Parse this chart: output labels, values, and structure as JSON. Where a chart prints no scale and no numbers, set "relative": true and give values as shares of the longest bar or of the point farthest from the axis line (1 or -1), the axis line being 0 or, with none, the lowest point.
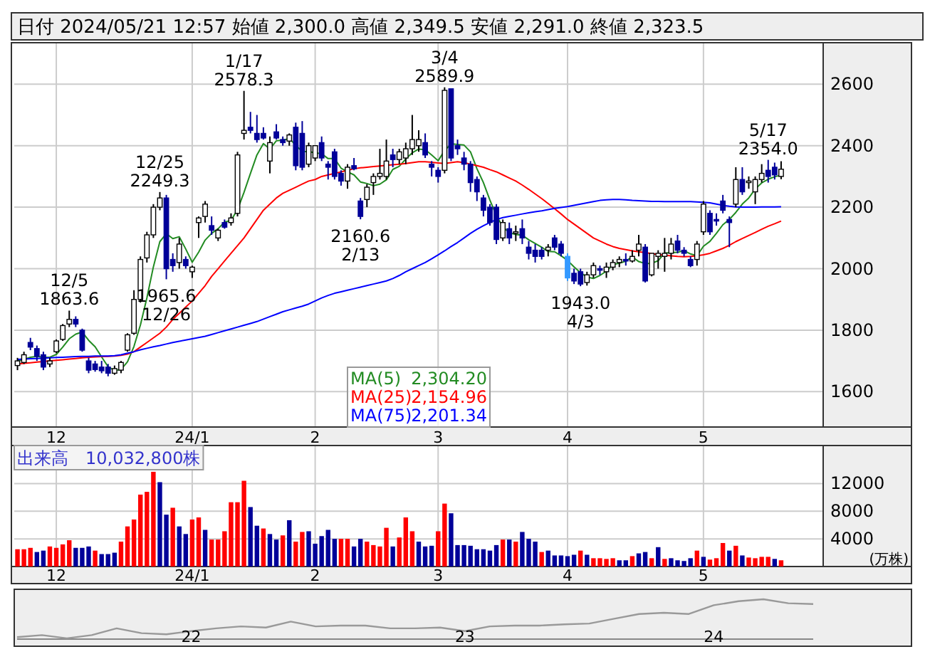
{
  "chart_data": [
    {
      "type": "candlestick",
      "title": "日付 2024/05/21 12:57 始値 2,300.0 高値 2,349.5 安値 2,291.0 終値 2,323.5",
      "categories": [
        null,
        null,
        null,
        null,
        null,
        null,
        "12",
        null,
        null,
        null,
        null,
        null,
        null,
        null,
        null,
        null,
        null,
        null,
        null,
        null,
        null,
        null,
        null,
        null,
        null,
        null,
        null,
        "24/1",
        null,
        null,
        null,
        null,
        null,
        null,
        null,
        null,
        null,
        null,
        null,
        null,
        null,
        null,
        null,
        null,
        null,
        null,
        "2",
        null,
        null,
        null,
        null,
        null,
        null,
        null,
        null,
        null,
        null,
        null,
        null,
        null,
        null,
        null,
        null,
        null,
        null,
        "3",
        null,
        null,
        null,
        null,
        null,
        null,
        null,
        null,
        null,
        null,
        null,
        null,
        null,
        null,
        null,
        null,
        null,
        null,
        null,
        "4",
        null,
        null,
        null,
        null,
        null,
        null,
        null,
        null,
        null,
        null,
        null,
        null,
        null,
        null,
        null,
        null,
        null,
        null,
        null,
        null,
        "5",
        null,
        null,
        null,
        null,
        null,
        null,
        null,
        null,
        null,
        null,
        null,
        null
      ],
      "ohlc": [
        [
          1685,
          1710,
          1670,
          1700
        ],
        [
          1695,
          1730,
          1690,
          1720
        ],
        [
          1760,
          1775,
          1735,
          1745
        ],
        [
          1740,
          1750,
          1700,
          1715
        ],
        [
          1720,
          1730,
          1670,
          1680
        ],
        [
          1690,
          1710,
          1680,
          1700
        ],
        [
          1730,
          1770,
          1725,
          1765
        ],
        [
          1770,
          1820,
          1765,
          1815
        ],
        [
          1820,
          1863.6,
          1810,
          1835
        ],
        [
          1835,
          1845,
          1810,
          1820
        ],
        [
          1800,
          1805,
          1730,
          1735
        ],
        [
          1700,
          1710,
          1660,
          1670
        ],
        [
          1690,
          1700,
          1665,
          1672
        ],
        [
          1680,
          1700,
          1660,
          1668
        ],
        [
          1680,
          1690,
          1650,
          1660
        ],
        [
          1660,
          1685,
          1655,
          1675
        ],
        [
          1670,
          1700,
          1660,
          1695
        ],
        [
          1735,
          1790,
          1730,
          1785
        ],
        [
          1790,
          1930,
          1785,
          1900
        ],
        [
          1900,
          2040,
          1890,
          2030
        ],
        [
          2035,
          2120,
          2020,
          2110
        ],
        [
          2110,
          2210,
          2100,
          2200
        ],
        [
          2200,
          2249.3,
          2190,
          2230
        ],
        [
          2230,
          2240,
          1965.6,
          2000
        ],
        [
          2030,
          2050,
          1990,
          2010
        ],
        [
          2020,
          2100,
          2000,
          2080
        ],
        [
          2030,
          2040,
          2000,
          2010
        ],
        [
          1990,
          2010,
          1970,
          2005
        ],
        [
          2150,
          2170,
          2100,
          2165
        ],
        [
          2170,
          2220,
          2150,
          2210
        ],
        [
          2140,
          2170,
          2110,
          2125
        ],
        [
          2100,
          2130,
          2090,
          2125
        ],
        [
          2150,
          2160,
          2130,
          2135
        ],
        [
          2150,
          2180,
          2140,
          2165
        ],
        [
          2180,
          2380,
          2170,
          2370
        ],
        [
          2440,
          2578.3,
          2420,
          2450
        ],
        [
          2460,
          2510,
          2440,
          2450
        ],
        [
          2440,
          2500,
          2410,
          2420
        ],
        [
          2440,
          2460,
          2420,
          2425
        ],
        [
          2350,
          2430,
          2310,
          2410
        ],
        [
          2445,
          2470,
          2420,
          2425
        ],
        [
          2420,
          2430,
          2400,
          2410
        ],
        [
          2415,
          2440,
          2400,
          2435
        ],
        [
          2460,
          2475,
          2320,
          2335
        ],
        [
          2440,
          2480,
          2320,
          2330
        ],
        [
          2340,
          2410,
          2330,
          2400
        ],
        [
          2360,
          2400,
          2350,
          2400
        ],
        [
          2410,
          2430,
          2350,
          2360
        ],
        [
          2340,
          2350,
          2290,
          2330
        ],
        [
          2380,
          2390,
          2290,
          2300
        ],
        [
          2310,
          2320,
          2270,
          2285
        ],
        [
          2285,
          2340,
          2260,
          2330
        ],
        [
          2335,
          2360,
          2320,
          2325
        ],
        [
          2220,
          2230,
          2160.6,
          2170
        ],
        [
          2225,
          2275,
          2200,
          2265
        ],
        [
          2280,
          2310,
          2240,
          2300
        ],
        [
          2300,
          2390,
          2290,
          2310
        ],
        [
          2300,
          2420,
          2290,
          2350
        ],
        [
          2370,
          2390,
          2330,
          2355
        ],
        [
          2355,
          2390,
          2340,
          2380
        ],
        [
          2360,
          2410,
          2340,
          2390
        ],
        [
          2390,
          2500,
          2370,
          2420
        ],
        [
          2400,
          2450,
          2380,
          2420
        ],
        [
          2410,
          2440,
          2360,
          2370
        ],
        [
          2340,
          2350,
          2300,
          2330
        ],
        [
          2320,
          2330,
          2280,
          2300
        ],
        [
          2320,
          2589.9,
          2310,
          2580
        ],
        [
          2585,
          2585,
          2350,
          2360
        ],
        [
          2400,
          2420,
          2370,
          2390
        ],
        [
          2360,
          2380,
          2320,
          2340
        ],
        [
          2340,
          2350,
          2250,
          2280
        ],
        [
          2290,
          2300,
          2220,
          2250
        ],
        [
          2230,
          2240,
          2170,
          2190
        ],
        [
          2200,
          2210,
          2140,
          2150
        ],
        [
          2200,
          2210,
          2080,
          2095
        ],
        [
          2100,
          2160,
          2090,
          2150
        ],
        [
          2130,
          2150,
          2080,
          2100
        ],
        [
          2115,
          2140,
          2090,
          2120
        ],
        [
          2130,
          2160,
          2080,
          2100
        ],
        [
          2070,
          2090,
          2030,
          2050
        ],
        [
          2060,
          2080,
          2020,
          2040
        ],
        [
          2060,
          2070,
          2030,
          2040
        ],
        [
          2060,
          2080,
          2040,
          2070
        ],
        [
          2100,
          2110,
          2060,
          2070
        ],
        [
          2080,
          2090,
          2040,
          2050
        ],
        [
          2040,
          2050,
          1960,
          1970
        ],
        [
          1985,
          2000,
          1950,
          1960
        ],
        [
          1990,
          2000,
          1943.0,
          1950
        ],
        [
          1955,
          1990,
          1945,
          1980
        ],
        [
          1980,
          2020,
          1970,
          2010
        ],
        [
          2000,
          2010,
          1980,
          1995
        ],
        [
          1990,
          2020,
          1970,
          2005
        ],
        [
          2005,
          2030,
          1995,
          2020
        ],
        [
          2020,
          2040,
          2005,
          2030
        ],
        [
          2030,
          2050,
          2010,
          2025
        ],
        [
          2025,
          2060,
          2020,
          2040
        ],
        [
          2060,
          2110,
          2040,
          2080
        ],
        [
          2070,
          2080,
          1955,
          1960
        ],
        [
          1980,
          2050,
          1975,
          2050
        ],
        [
          2040,
          2060,
          2000,
          2050
        ],
        [
          2040,
          2100,
          1990,
          2050
        ],
        [
          2050,
          2100,
          2030,
          2080
        ],
        [
          2090,
          2110,
          2050,
          2060
        ],
        [
          2060,
          2070,
          2040,
          2050
        ],
        [
          2030,
          2040,
          2005,
          2010
        ],
        [
          2030,
          2090,
          2010,
          2080
        ],
        [
          2120,
          2220,
          2110,
          2210
        ],
        [
          2180,
          2190,
          2110,
          2120
        ],
        [
          2160,
          2180,
          2140,
          2155
        ],
        [
          2220,
          2240,
          2180,
          2190
        ],
        [
          2160,
          2170,
          2070,
          2150
        ],
        [
          2210,
          2330,
          2200,
          2290
        ],
        [
          2290,
          2330,
          2240,
          2250
        ],
        [
          2280,
          2300,
          2260,
          2285
        ],
        [
          2250,
          2300,
          2210,
          2290
        ],
        [
          2290,
          2340,
          2280,
          2310
        ],
        [
          2320,
          2354.0,
          2280,
          2300
        ],
        [
          2330,
          2345,
          2290,
          2305
        ],
        [
          2300,
          2349.5,
          2291.0,
          2323.5
        ]
      ],
      "colors": [
        "#ffffff",
        "#ffffff",
        "#000099",
        "#000099",
        "#000099",
        "#ffffff",
        "#ffffff",
        "#ffffff",
        "#ffffff",
        "#000099",
        "#000099",
        "#000099",
        "#000099",
        "#000099",
        "#000099",
        "#ffffff",
        "#ffffff",
        "#ffffff",
        "#ffffff",
        "#ffffff",
        "#ffffff",
        "#ffffff",
        "#ffffff",
        "#000099",
        "#000099",
        "#ffffff",
        "#000099",
        "#ffffff",
        "#ffffff",
        "#ffffff",
        "#000099",
        "#ffffff",
        "#000099",
        "#ffffff",
        "#ffffff",
        "#ffffff",
        "#000099",
        "#000099",
        "#000099",
        "#ffffff",
        "#000099",
        "#000099",
        "#ffffff",
        "#000099",
        "#000099",
        "#ffffff",
        "#ffffff",
        "#000099",
        "#000099",
        "#000099",
        "#000099",
        "#ffffff",
        "#000099",
        "#000099",
        "#ffffff",
        "#ffffff",
        "#ffffff",
        "#ffffff",
        "#000099",
        "#ffffff",
        "#ffffff",
        "#ffffff",
        "#ffffff",
        "#000099",
        "#000099",
        "#000099",
        "#ffffff",
        "#000099",
        "#000099",
        "#000099",
        "#000099",
        "#000099",
        "#000099",
        "#000099",
        "#000099",
        "#ffffff",
        "#000099",
        "#ffffff",
        "#000099",
        "#000099",
        "#000099",
        "#000099",
        "#ffffff",
        "#000099",
        "#000099",
        "#3399ff",
        "#000099",
        "#000099",
        "#ffffff",
        "#ffffff",
        "#000099",
        "#ffffff",
        "#ffffff",
        "#ffffff",
        "#000099",
        "#ffffff",
        "#ffffff",
        "#000099",
        "#ffffff",
        "#ffffff",
        "#ffffff",
        "#ffffff",
        "#000099",
        "#000099",
        "#000099",
        "#ffffff",
        "#ffffff",
        "#000099",
        "#000099",
        "#000099",
        "#000099",
        "#ffffff",
        "#000099",
        "#ffffff",
        "#ffffff",
        "#ffffff",
        "#000099",
        "#000099",
        "#ffffff"
      ],
      "series": [
        {
          "name": "MA(5)",
          "type": "line",
          "color": "#228b22",
          "values": [
            1700,
            1705,
            1712,
            1715,
            1712,
            1712,
            1721,
            1745,
            1772,
            1787,
            1794,
            1767,
            1746,
            1713,
            1681,
            1669,
            1672,
            1697,
            1747,
            1817,
            1905,
            2006,
            2088,
            2114,
            2098,
            2104,
            2064,
            2021,
            2054,
            2093,
            2115,
            2130,
            2152,
            2157,
            2192,
            2248,
            2310,
            2370,
            2407,
            2389,
            2416,
            2418,
            2423,
            2402,
            2381,
            2381,
            2377,
            2374,
            2358,
            2358,
            2327,
            2315,
            2305,
            2282,
            2277,
            2270,
            2275,
            2289,
            2323,
            2333,
            2357,
            2377,
            2389,
            2387,
            2370,
            2351,
            2384,
            2406,
            2404,
            2402,
            2380,
            2325,
            2280,
            2223,
            2173,
            2136,
            2117,
            2111,
            2109,
            2094,
            2082,
            2070,
            2056,
            2055,
            2042,
            2027,
            2006,
            1987,
            1973,
            1968,
            1978,
            1992,
            2013,
            2018,
            2024,
            2039,
            2023,
            2017,
            2017,
            2026,
            2051,
            2052,
            2053,
            2059,
            2048,
            2042,
            2073,
            2089,
            2115,
            2143,
            2160,
            2183,
            2210,
            2230,
            2259,
            2279,
            2291,
            2299,
            2304.2
          ]
        },
        {
          "name": "MA(25)",
          "type": "line",
          "color": "#ff0000",
          "values": [
            1690,
            1692,
            1694,
            1696,
            1698,
            1700,
            1702,
            1704,
            1706,
            1708,
            1710,
            1712,
            1713,
            1714,
            1715,
            1716,
            1718,
            1722,
            1730,
            1745,
            1760,
            1775,
            1790,
            1810,
            1835,
            1855,
            1875,
            1895,
            1920,
            1945,
            1975,
            2000,
            2025,
            2050,
            2075,
            2100,
            2130,
            2160,
            2190,
            2210,
            2230,
            2245,
            2255,
            2265,
            2275,
            2285,
            2290,
            2300,
            2305,
            2310,
            2315,
            2320,
            2325,
            2328,
            2330,
            2332,
            2334,
            2336,
            2338,
            2340,
            2342,
            2345,
            2348,
            2348,
            2346,
            2344,
            2342,
            2345,
            2348,
            2345,
            2340,
            2335,
            2330,
            2322,
            2315,
            2305,
            2295,
            2285,
            2272,
            2258,
            2243,
            2228,
            2212,
            2195,
            2178,
            2160,
            2145,
            2130,
            2115,
            2100,
            2090,
            2080,
            2072,
            2066,
            2062,
            2058,
            2055,
            2052,
            2049,
            2046,
            2044,
            2042,
            2040,
            2039,
            2040,
            2042,
            2045,
            2050,
            2058,
            2066,
            2076,
            2088,
            2098,
            2108,
            2118,
            2128,
            2138,
            2146,
            2154.96
          ]
        },
        {
          "name": "MA(75)",
          "type": "line",
          "color": "#0000ff",
          "values": [
            1705,
            1706,
            1707,
            1708,
            1709,
            1710,
            1711,
            1712,
            1713,
            1714,
            1715,
            1715,
            1716,
            1716,
            1716,
            1717,
            1720,
            1725,
            1730,
            1736,
            1741,
            1746,
            1750,
            1755,
            1760,
            1764,
            1768,
            1772,
            1776,
            1780,
            1786,
            1792,
            1798,
            1804,
            1810,
            1816,
            1822,
            1828,
            1836,
            1844,
            1852,
            1860,
            1866,
            1872,
            1878,
            1885,
            1895,
            1905,
            1913,
            1920,
            1925,
            1930,
            1935,
            1940,
            1945,
            1950,
            1955,
            1960,
            1968,
            1978,
            1990,
            2000,
            2010,
            2020,
            2032,
            2045,
            2058,
            2072,
            2085,
            2100,
            2115,
            2128,
            2140,
            2150,
            2160,
            2166,
            2170,
            2174,
            2178,
            2182,
            2185,
            2188,
            2192,
            2196,
            2199,
            2202,
            2206,
            2210,
            2214,
            2218,
            2222,
            2224,
            2225,
            2225,
            2224,
            2222,
            2221,
            2220,
            2219,
            2219,
            2218,
            2218,
            2218,
            2218,
            2218,
            2217,
            2216,
            2214,
            2210,
            2206,
            2203,
            2201,
            2200,
            2200,
            2200,
            2201,
            2201,
            2201,
            2201.34
          ]
        }
      ],
      "ylim": [
        1485,
        2735
      ],
      "yticks": [
        1600,
        1800,
        2000,
        2200,
        2400,
        2600
      ],
      "grid": true,
      "legend": "bottom",
      "annotations": [
        "2,304.20",
        "2,154.96",
        "2,201.34",
        {
          "text": "12/5\n1863.6",
          "y": 1863.6
        },
        {
          "text": "12/25\n2249.3",
          "y": 2249.3
        },
        {
          "text": "1965.6\n12/26",
          "y": 1965.6
        },
        {
          "text": "1/17\n2578.3",
          "y": 2578.3
        },
        {
          "text": "2160.6\n2/13",
          "y": 2160.6
        },
        {
          "text": "3/4\n2589.9",
          "y": 2589.9
        },
        {
          "text": "1943.0\n4/3",
          "y": 1943.0
        },
        {
          "text": "5/17\n2354.0",
          "y": 2354.0
        }
      ]
    },
    {
      "type": "bar",
      "title": "出来高　10,032,800株",
      "ylabel": "(万株)",
      "categories": [
        null,
        null,
        null,
        null,
        null,
        null,
        "12",
        null,
        null,
        null,
        null,
        null,
        null,
        null,
        null,
        null,
        null,
        null,
        null,
        null,
        null,
        null,
        null,
        null,
        null,
        null,
        null,
        "24/1",
        null,
        null,
        null,
        null,
        null,
        null,
        null,
        null,
        null,
        null,
        null,
        null,
        null,
        null,
        null,
        null,
        null,
        null,
        "2",
        null,
        null,
        null,
        null,
        null,
        null,
        null,
        null,
        null,
        null,
        null,
        null,
        null,
        null,
        null,
        null,
        null,
        null,
        "3",
        null,
        null,
        null,
        null,
        null,
        null,
        null,
        null,
        null,
        null,
        null,
        null,
        null,
        null,
        null,
        null,
        null,
        null,
        null,
        "4",
        null,
        null,
        null,
        null,
        null,
        null,
        null,
        null,
        null,
        null,
        null,
        null,
        null,
        null,
        null,
        null,
        null,
        null,
        null,
        null,
        "5",
        null,
        null,
        null,
        null,
        null,
        null,
        null,
        null,
        null,
        null,
        null,
        null
      ],
      "values": [
        2500,
        2500,
        2700,
        2100,
        2300,
        2900,
        2700,
        3200,
        3800,
        2700,
        2700,
        2900,
        2300,
        1800,
        1800,
        2000,
        3600,
        5800,
        6800,
        10400,
        10800,
        13700,
        12200,
        7500,
        8500,
        5800,
        4700,
        6800,
        7100,
        5300,
        3900,
        3900,
        5100,
        9300,
        9300,
        12400,
        8600,
        5900,
        5500,
        4700,
        3900,
        4500,
        6700,
        3600,
        5000,
        5100,
        3300,
        4400,
        5300,
        4000,
        4000,
        4000,
        2900,
        4000,
        3600,
        3100,
        2900,
        5600,
        2900,
        4200,
        7100,
        5100,
        3600,
        2900,
        3000,
        5100,
        9100,
        7700,
        3100,
        3100,
        3000,
        2500,
        2500,
        2300,
        3100,
        3900,
        3900,
        3600,
        5000,
        4000,
        3600,
        2100,
        2300,
        1600,
        1600,
        1500,
        1700,
        2300,
        1700,
        1200,
        1200,
        1100,
        1200,
        900,
        900,
        1500,
        1900,
        2100,
        1200,
        2800,
        1100,
        1200,
        900,
        800,
        1200,
        2300,
        1400,
        1000,
        1200,
        3400,
        2300,
        3000,
        1600,
        1300,
        1200,
        1400,
        1400,
        1100,
        900
      ],
      "colors": [
        "#ff0000",
        "#ff0000",
        "#ff0000",
        "#000099",
        "#000099",
        "#ff0000",
        "#ff0000",
        "#ff0000",
        "#ff0000",
        "#000099",
        "#000099",
        "#000099",
        "#ff0000",
        "#000099",
        "#000099",
        "#000099",
        "#ff0000",
        "#ff0000",
        "#ff0000",
        "#ff0000",
        "#ff0000",
        "#ff0000",
        "#000099",
        "#000099",
        "#ff0000",
        "#000099",
        "#000099",
        "#ff0000",
        "#ff0000",
        "#000099",
        "#ff0000",
        "#ff0000",
        "#ff0000",
        "#ff0000",
        "#ff0000",
        "#ff0000",
        "#000099",
        "#000099",
        "#ff0000",
        "#000099",
        "#000099",
        "#ff0000",
        "#000099",
        "#ff0000",
        "#ff0000",
        "#000099",
        "#000099",
        "#000099",
        "#000099",
        "#000099",
        "#ff0000",
        "#ff0000",
        "#000099",
        "#000099",
        "#ff0000",
        "#ff0000",
        "#ff0000",
        "#ff0000",
        "#000099",
        "#ff0000",
        "#ff0000",
        "#ff0000",
        "#000099",
        "#000099",
        "#000099",
        "#ff0000",
        "#ff0000",
        "#000099",
        "#000099",
        "#000099",
        "#000099",
        "#000099",
        "#000099",
        "#000099",
        "#000099",
        "#ff0000",
        "#000099",
        "#ff0000",
        "#000099",
        "#000099",
        "#000099",
        "#ff0000",
        "#000099",
        "#000099",
        "#000099",
        "#000099",
        "#000099",
        "#ff0000",
        "#000099",
        "#ff0000",
        "#ff0000",
        "#ff0000",
        "#ff0000",
        "#000099",
        "#000099",
        "#ff0000",
        "#000099",
        "#000099",
        "#ff0000",
        "#000099",
        "#ff0000",
        "#000099",
        "#000099",
        "#000099",
        "#000099",
        "#ff0000",
        "#000099",
        "#ff0000",
        "#ff0000",
        "#ff0000",
        "#000099",
        "#ff0000",
        "#000099",
        "#ff0000",
        "#ff0000",
        "#ff0000",
        "#ff0000",
        "#000099",
        "#ff0000"
      ],
      "ylim": [
        0,
        17500
      ],
      "yticks": [
        4000,
        8000,
        12000
      ],
      "grid": true
    },
    {
      "type": "line",
      "relative": true,
      "color": "#999999",
      "categories": [
        null,
        null,
        null,
        null,
        null,
        null,
        null,
        "22",
        null,
        null,
        null,
        null,
        null,
        null,
        null,
        null,
        null,
        null,
        "23",
        null,
        null,
        null,
        null,
        null,
        null,
        null,
        null,
        null,
        "24",
        null,
        null,
        null,
        null
      ],
      "values": [
        0.05,
        0.1,
        0.02,
        0.1,
        0.27,
        0.15,
        0.12,
        0.2,
        0.27,
        0.32,
        0.29,
        0.44,
        0.32,
        0.34,
        0.34,
        0.27,
        0.27,
        0.29,
        0.2,
        0.32,
        0.34,
        0.34,
        0.37,
        0.39,
        0.51,
        0.63,
        0.66,
        0.63,
        0.85,
        0.95,
        1,
        0.9,
        0.88
      ]
    }
  ]
}
